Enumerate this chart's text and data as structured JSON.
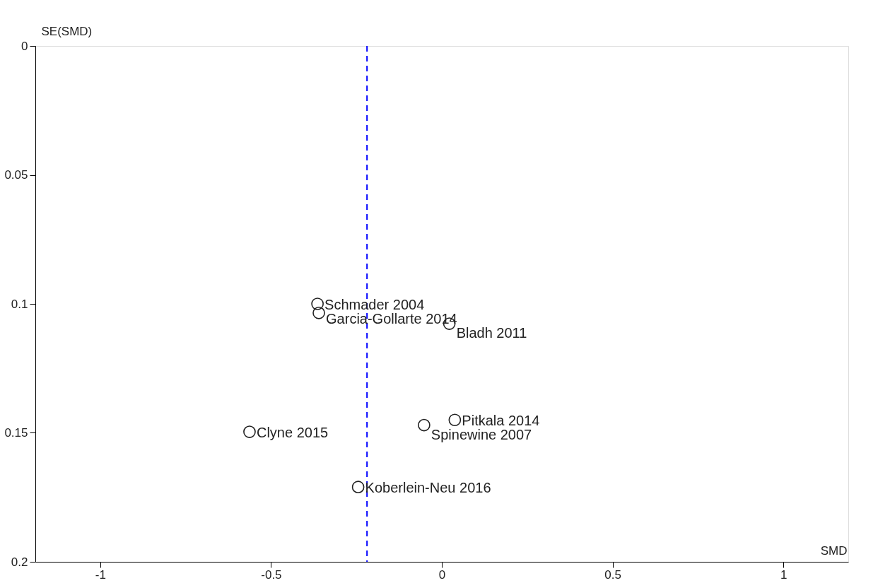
{
  "chart_data": {
    "type": "scatter",
    "xlabel": "SMD",
    "ylabel": "SE(SMD)",
    "x": [
      -0.364,
      -0.36,
      0.022,
      0.038,
      -0.052,
      -0.563,
      -0.245
    ],
    "values": [
      0.1,
      0.1035,
      0.1077,
      0.145,
      0.147,
      0.1496,
      0.171
    ],
    "value_labels": [
      "Schmader 2004",
      "Garcia-Gollarte 2014",
      "Bladh 2011",
      "Pitkala 2014",
      "Spinewine 2007",
      "Clyne 2015",
      "Koberlein-Neu 2016"
    ],
    "color": "#222222",
    "marker": "circle",
    "xlim": [
      -1.19,
      1.19
    ],
    "xticks": [
      -1,
      -0.5,
      0,
      0.5,
      1
    ],
    "ylim": [
      0.2,
      0
    ],
    "yticks": [
      0,
      0.05,
      0.1,
      0.15,
      0.2
    ],
    "ref_lines": [
      {
        "axis": "x",
        "value": -0.219,
        "color": "#0000ff",
        "line_style": "dashed"
      }
    ],
    "grid": false
  }
}
